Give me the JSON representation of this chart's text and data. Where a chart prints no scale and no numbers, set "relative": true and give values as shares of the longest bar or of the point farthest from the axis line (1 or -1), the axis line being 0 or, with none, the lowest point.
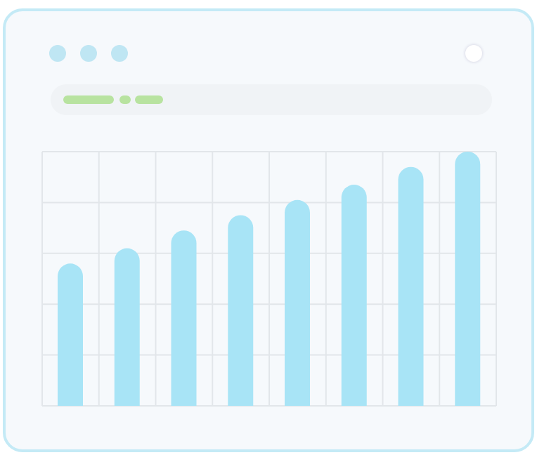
{
  "chart_data": {
    "type": "bar",
    "relative": true,
    "categories": [
      null,
      null,
      null,
      null,
      null,
      null,
      null,
      null
    ],
    "values": [
      0.56,
      0.62,
      0.69,
      0.75,
      0.81,
      0.87,
      0.94,
      1
    ],
    "color": "#a8e4f6",
    "grid": true
  }
}
